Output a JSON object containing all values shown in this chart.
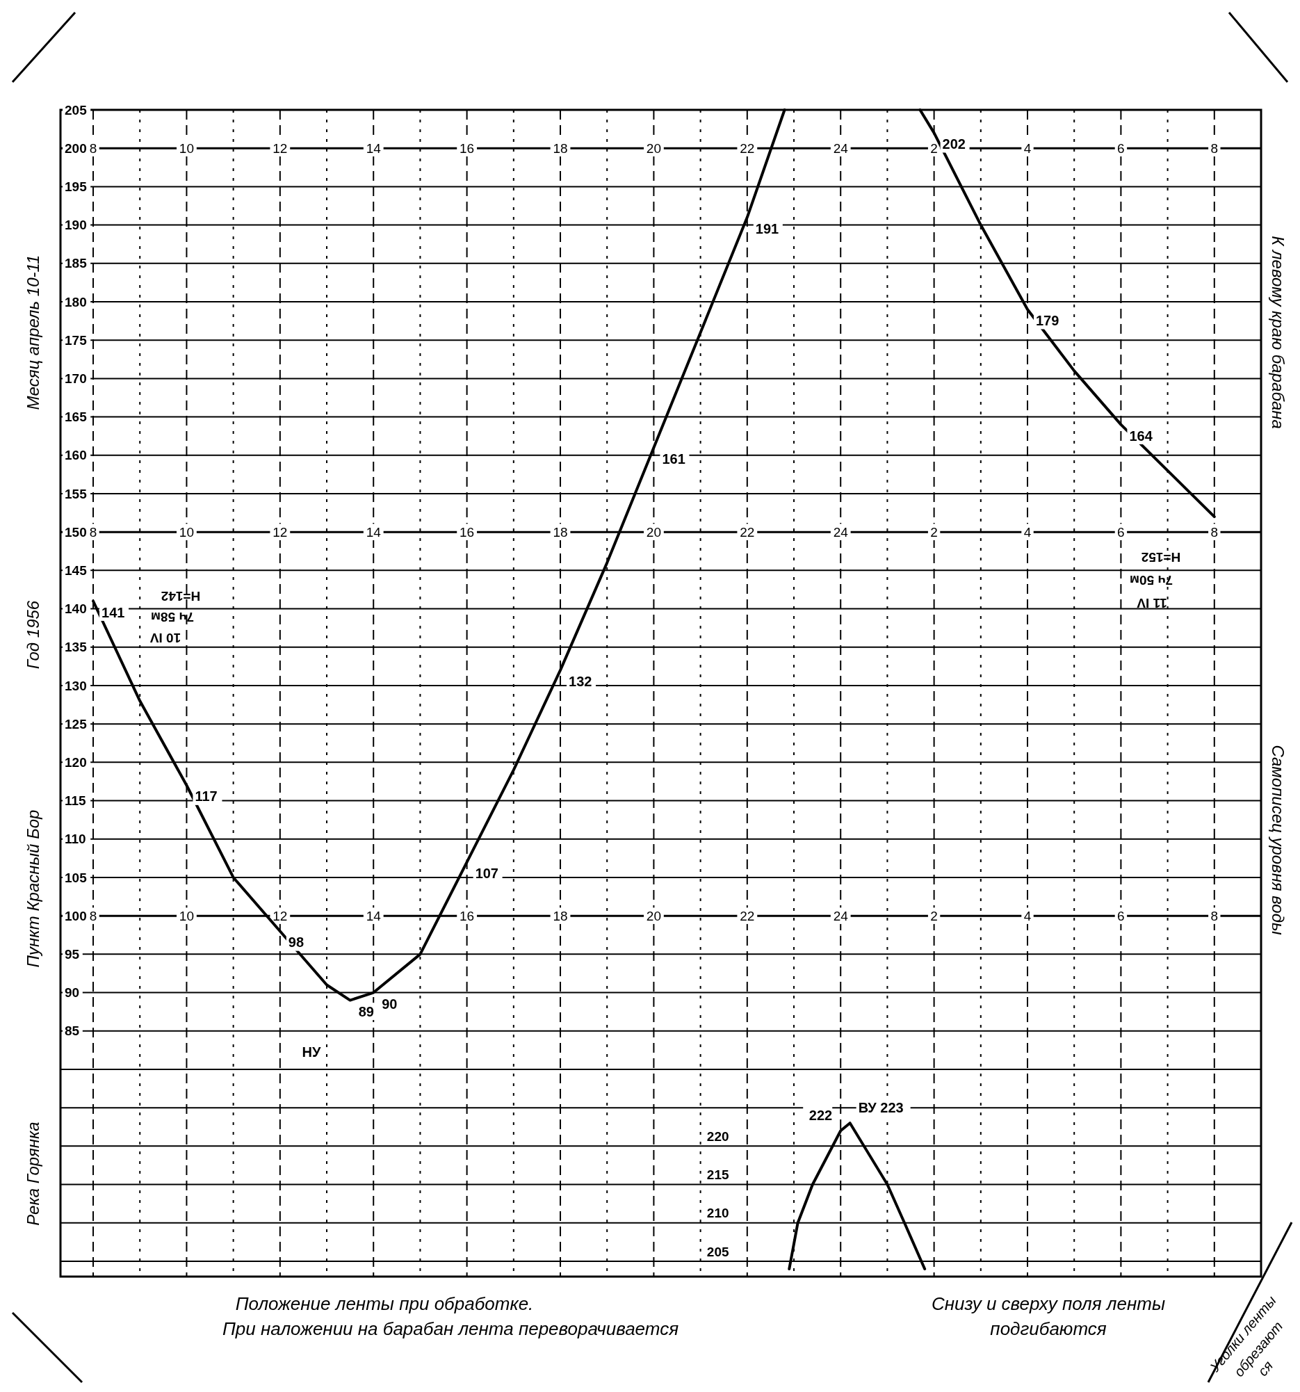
{
  "chart_data": {
    "type": "line",
    "xlim": [
      "1956-04-10T07:18",
      "1956-04-11T09:00"
    ],
    "xticks": [
      {
        "value": "1956-04-10T08:00",
        "label": "8"
      },
      {
        "value": "1956-04-10T09:00",
        "label": null
      },
      {
        "value": "1956-04-10T10:00",
        "label": "10"
      },
      {
        "value": "1956-04-10T11:00",
        "label": null
      },
      {
        "value": "1956-04-10T12:00",
        "label": "12"
      },
      {
        "value": "1956-04-10T13:00",
        "label": null
      },
      {
        "value": "1956-04-10T14:00",
        "label": "14"
      },
      {
        "value": "1956-04-10T15:00",
        "label": null
      },
      {
        "value": "1956-04-10T16:00",
        "label": "16"
      },
      {
        "value": "1956-04-10T17:00",
        "label": null
      },
      {
        "value": "1956-04-10T18:00",
        "label": "18"
      },
      {
        "value": "1956-04-10T19:00",
        "label": null
      },
      {
        "value": "1956-04-10T20:00",
        "label": "20"
      },
      {
        "value": "1956-04-10T21:00",
        "label": null
      },
      {
        "value": "1956-04-10T22:00",
        "label": "22"
      },
      {
        "value": "1956-04-10T23:00",
        "label": null
      },
      {
        "value": "1956-04-11T00:00",
        "label": "24"
      },
      {
        "value": "1956-04-11T01:00",
        "label": null
      },
      {
        "value": "1956-04-11T02:00",
        "label": "2"
      },
      {
        "value": "1956-04-11T03:00",
        "label": null
      },
      {
        "value": "1956-04-11T04:00",
        "label": "4"
      },
      {
        "value": "1956-04-11T05:00",
        "label": null
      },
      {
        "value": "1956-04-11T06:00",
        "label": "6"
      },
      {
        "value": "1956-04-11T07:00",
        "label": null
      },
      {
        "value": "1956-04-11T08:00",
        "label": "8"
      }
    ],
    "x2lim": [
      "1956-04-10T07:18",
      "1956-04-11T09:00"
    ],
    "x2ticks": [
      {
        "value": "1956-04-10T08:00",
        "label": "8"
      },
      {
        "value": "1956-04-10T10:00",
        "label": "10"
      },
      {
        "value": "1956-04-10T12:00",
        "label": "12"
      },
      {
        "value": "1956-04-10T14:00",
        "label": "14"
      },
      {
        "value": "1956-04-10T16:00",
        "label": "16"
      },
      {
        "value": "1956-04-10T18:00",
        "label": "18"
      },
      {
        "value": "1956-04-10T20:00",
        "label": "20"
      },
      {
        "value": "1956-04-10T22:00",
        "label": "22"
      },
      {
        "value": "1956-04-11T00:00",
        "label": "24"
      },
      {
        "value": "1956-04-11T02:00",
        "label": "2"
      },
      {
        "value": "1956-04-11T04:00",
        "label": "4"
      },
      {
        "value": "1956-04-11T06:00",
        "label": "6"
      },
      {
        "value": "1956-04-11T08:00",
        "label": "8"
      }
    ],
    "ylim": [
      53,
      205
    ],
    "yticks": [
      85,
      90,
      95,
      100,
      105,
      110,
      115,
      120,
      125,
      130,
      135,
      140,
      145,
      150,
      155,
      160,
      165,
      170,
      175,
      180,
      185,
      190,
      195,
      200,
      205
    ],
    "y2lim": [
      203,
      355
    ],
    "y2ticks": [
      205,
      210,
      215,
      220,
      {
        "value": 225,
        "label": null
      },
      {
        "value": 230,
        "label": null
      }
    ],
    "grid": true,
    "series": [
      {
        "color": "#000000",
        "x": [
          "1956-04-10T08:00",
          "1956-04-10T09:00",
          "1956-04-10T10:00",
          "1956-04-10T11:00",
          "1956-04-10T12:00",
          "1956-04-10T13:00",
          "1956-04-10T13:30",
          "1956-04-10T14:00",
          "1956-04-10T15:00",
          "1956-04-10T16:00",
          "1956-04-10T17:00",
          "1956-04-10T18:00",
          "1956-04-10T19:00",
          "1956-04-10T20:00",
          "1956-04-10T21:00",
          "1956-04-10T22:00",
          "1956-04-10T22:48",
          "1956-04-11T00:00",
          "1956-04-11T01:42",
          "1956-04-11T02:00",
          "1956-04-11T03:00",
          "1956-04-11T04:00",
          "1956-04-11T05:00",
          "1956-04-11T06:00",
          "1956-04-11T07:00",
          "1956-04-11T08:00"
        ],
        "values": [
          141,
          128,
          117,
          105,
          98,
          91,
          89,
          90,
          95,
          107,
          119,
          132,
          146,
          161,
          176,
          191,
          205,
          null,
          205,
          202,
          190,
          179,
          171,
          164,
          158,
          152
        ],
        "value_labels": [
          "141",
          null,
          "117",
          null,
          "98",
          null,
          "89",
          "90",
          null,
          "107",
          null,
          "132",
          null,
          "161",
          null,
          "191",
          null,
          null,
          null,
          "202",
          null,
          "179",
          null,
          "164",
          null,
          null
        ]
      },
      {
        "color": "#000000",
        "axis": "y2",
        "x": [
          "1956-04-10T22:54",
          "1956-04-10T23:05",
          "1956-04-10T23:24",
          "1956-04-11T00:00",
          "1956-04-11T00:12",
          "1956-04-11T01:00",
          "1956-04-11T01:22",
          "1956-04-11T01:48"
        ],
        "values": [
          204,
          210,
          215,
          222,
          223,
          215,
          210,
          204
        ],
        "value_labels": [
          null,
          null,
          null,
          "222",
          "ВУ 223",
          null,
          null,
          null
        ]
      }
    ],
    "annotations": [
      "Месяц апрель 10-11",
      "Год 1956",
      "Пункт Красный Бор",
      "Река Горянка",
      "К левому краю барабана",
      "Самописец уровня воды",
      "Положение ленты при обработке.",
      "При наложении на барабан лента переворачивается",
      "Снизу и сверху поля ленты",
      "подгибаются",
      "Уголки ленты",
      "обрезают",
      "ся",
      "НУ",
      "H=142",
      "7ч 58м",
      "10 IV",
      "H=152",
      "7ч 50м",
      "11 IV",
      "8",
      "10",
      "12",
      "14",
      "16",
      "18",
      "20",
      "22",
      "24",
      "2",
      "4",
      "6",
      "8"
    ]
  }
}
